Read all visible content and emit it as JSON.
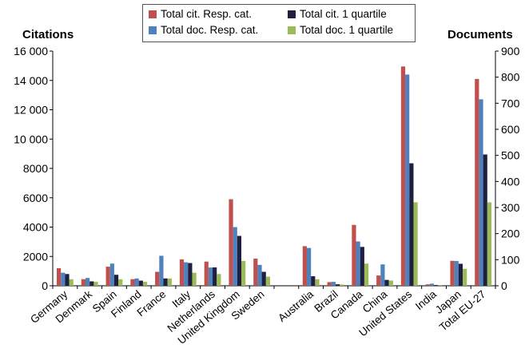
{
  "chart_data": {
    "type": "bar",
    "ylabel_left": "Citations",
    "ylabel_right": "Documents",
    "ylim_left": [
      0,
      16000
    ],
    "ylim_right": [
      0,
      900
    ],
    "yticks_left": [
      "0",
      "2000",
      "4000",
      "6000",
      "8000",
      "10 000",
      "12 000",
      "14 000",
      "16 000"
    ],
    "yticks_right": [
      "0",
      "100",
      "200",
      "300",
      "400",
      "500",
      "600",
      "700",
      "800",
      "900"
    ],
    "grid": false,
    "legend_position": "top",
    "categories": [
      "Germany",
      "Denmark",
      "Spain",
      "Finland",
      "France",
      "Italy",
      "Netherlands",
      "United Kingdom",
      "Sweden",
      "",
      "Australia",
      "Brazil",
      "Canada",
      "China",
      "United States",
      "India",
      "Japan",
      "Total EU-27"
    ],
    "series": [
      {
        "name": "Total cit. Resp. cat.",
        "axis": "left",
        "color": "#c0504d",
        "values": [
          1200,
          450,
          1300,
          450,
          950,
          1800,
          1650,
          5900,
          1850,
          0,
          2700,
          250,
          4150,
          700,
          14950,
          100,
          1700,
          14100
        ]
      },
      {
        "name": "Total doc. Resp. cat.",
        "axis": "right",
        "color": "#4f81bd",
        "values": [
          50,
          30,
          85,
          28,
          115,
          90,
          70,
          225,
          80,
          0,
          145,
          15,
          170,
          82,
          810,
          8,
          95,
          715
        ]
      },
      {
        "name": "Total cit. 1 quartile",
        "axis": "left",
        "color": "#1f1f3f",
        "values": [
          800,
          300,
          750,
          350,
          500,
          1550,
          1250,
          3400,
          950,
          0,
          650,
          100,
          2650,
          400,
          8350,
          50,
          1500,
          8950
        ]
      },
      {
        "name": "Total doc. 1 quartile",
        "axis": "right",
        "color": "#9bbb59",
        "values": [
          25,
          15,
          25,
          15,
          28,
          50,
          45,
          95,
          35,
          0,
          25,
          5,
          85,
          20,
          320,
          3,
          65,
          320
        ]
      }
    ]
  }
}
